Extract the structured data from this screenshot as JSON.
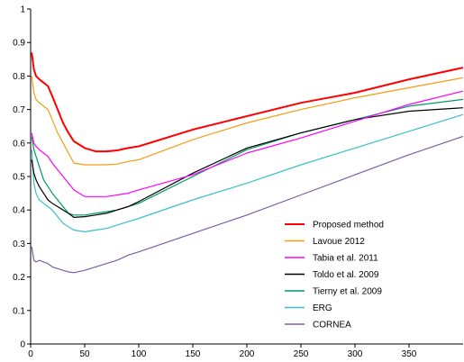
{
  "chart_data": {
    "type": "line",
    "title": "",
    "xlabel": "",
    "ylabel": "",
    "xlim": [
      0,
      400
    ],
    "ylim": [
      0,
      1
    ],
    "xticks": [
      0,
      50,
      100,
      150,
      200,
      250,
      300,
      350
    ],
    "yticks": [
      0,
      0.1,
      0.2,
      0.3,
      0.4,
      0.5,
      0.6,
      0.7,
      0.8,
      0.9,
      1
    ],
    "grid": false,
    "legend_position": "lower-right",
    "series": [
      {
        "name": "Proposed method",
        "color": "#ff0000",
        "x": [
          1,
          3,
          5,
          8,
          12,
          16,
          20,
          25,
          30,
          35,
          40,
          50,
          60,
          70,
          80,
          90,
          100,
          150,
          200,
          250,
          300,
          350,
          400
        ],
        "y": [
          0.87,
          0.82,
          0.8,
          0.79,
          0.78,
          0.77,
          0.74,
          0.7,
          0.66,
          0.63,
          0.605,
          0.585,
          0.575,
          0.575,
          0.578,
          0.585,
          0.59,
          0.64,
          0.68,
          0.72,
          0.75,
          0.79,
          0.825
        ]
      },
      {
        "name": "Lavoue 2012",
        "color": "#f39c12",
        "x": [
          1,
          3,
          5,
          8,
          12,
          16,
          20,
          25,
          30,
          35,
          40,
          50,
          60,
          70,
          80,
          90,
          100,
          150,
          200,
          250,
          300,
          350,
          400
        ],
        "y": [
          0.8,
          0.75,
          0.73,
          0.72,
          0.71,
          0.7,
          0.67,
          0.63,
          0.6,
          0.57,
          0.54,
          0.535,
          0.535,
          0.535,
          0.537,
          0.545,
          0.55,
          0.61,
          0.66,
          0.7,
          0.735,
          0.765,
          0.795
        ]
      },
      {
        "name": "Tabia et al. 2011",
        "color": "#ff00ff",
        "x": [
          1,
          3,
          5,
          8,
          12,
          16,
          20,
          25,
          30,
          35,
          40,
          50,
          60,
          70,
          80,
          90,
          100,
          150,
          200,
          250,
          300,
          350,
          400
        ],
        "y": [
          0.63,
          0.6,
          0.59,
          0.58,
          0.57,
          0.56,
          0.54,
          0.52,
          0.5,
          0.48,
          0.46,
          0.44,
          0.44,
          0.44,
          0.445,
          0.45,
          0.46,
          0.505,
          0.57,
          0.615,
          0.665,
          0.715,
          0.755
        ]
      },
      {
        "name": "Toldo et al. 2009",
        "color": "#000000",
        "x": [
          1,
          3,
          5,
          8,
          12,
          16,
          20,
          25,
          30,
          35,
          40,
          50,
          60,
          70,
          80,
          90,
          100,
          150,
          200,
          250,
          300,
          350,
          400
        ],
        "y": [
          0.55,
          0.51,
          0.49,
          0.47,
          0.45,
          0.43,
          0.42,
          0.41,
          0.4,
          0.39,
          0.378,
          0.38,
          0.385,
          0.39,
          0.4,
          0.41,
          0.425,
          0.51,
          0.585,
          0.63,
          0.67,
          0.695,
          0.705
        ]
      },
      {
        "name": "Tierny et al. 2009",
        "color": "#009966",
        "x": [
          1,
          3,
          5,
          8,
          12,
          16,
          20,
          25,
          30,
          35,
          40,
          50,
          60,
          70,
          80,
          90,
          100,
          150,
          200,
          250,
          300,
          350,
          400
        ],
        "y": [
          0.62,
          0.58,
          0.56,
          0.53,
          0.49,
          0.47,
          0.45,
          0.43,
          0.41,
          0.39,
          0.385,
          0.385,
          0.39,
          0.395,
          0.4,
          0.41,
          0.42,
          0.5,
          0.58,
          0.63,
          0.67,
          0.71,
          0.73
        ]
      },
      {
        "name": "ERG",
        "color": "#3bbfc7",
        "x": [
          1,
          3,
          5,
          8,
          12,
          16,
          20,
          25,
          30,
          35,
          40,
          50,
          60,
          70,
          80,
          90,
          100,
          150,
          200,
          250,
          300,
          350,
          400
        ],
        "y": [
          0.58,
          0.48,
          0.45,
          0.43,
          0.42,
          0.41,
          0.4,
          0.38,
          0.36,
          0.35,
          0.34,
          0.335,
          0.34,
          0.345,
          0.355,
          0.365,
          0.375,
          0.43,
          0.48,
          0.535,
          0.585,
          0.635,
          0.685
        ]
      },
      {
        "name": "CORNEA",
        "color": "#7b5ea7",
        "x": [
          1,
          3,
          5,
          8,
          12,
          16,
          20,
          25,
          30,
          35,
          40,
          50,
          60,
          70,
          80,
          90,
          100,
          150,
          200,
          250,
          300,
          350,
          400
        ],
        "y": [
          0.29,
          0.25,
          0.245,
          0.25,
          0.245,
          0.24,
          0.23,
          0.225,
          0.22,
          0.215,
          0.213,
          0.22,
          0.23,
          0.24,
          0.25,
          0.265,
          0.275,
          0.33,
          0.385,
          0.445,
          0.505,
          0.565,
          0.62
        ]
      }
    ]
  }
}
